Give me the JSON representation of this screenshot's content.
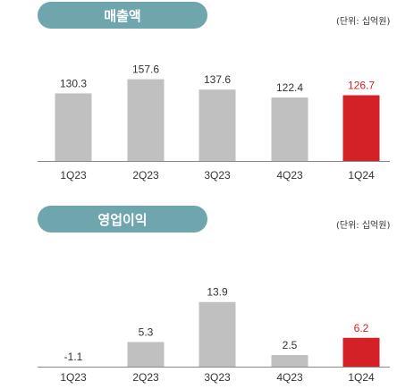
{
  "colors": {
    "pill": "#6FA6AE",
    "bar": "#C0C0C0",
    "highlight": "#D42027",
    "label": "#333333",
    "axis": "#888888"
  },
  "chart_data": [
    {
      "type": "bar",
      "title": "매출액",
      "unit": "(단위: 십억원)",
      "categories": [
        "1Q23",
        "2Q23",
        "3Q23",
        "4Q23",
        "1Q24"
      ],
      "values": [
        130.3,
        157.6,
        137.6,
        122.4,
        126.7
      ],
      "value_labels": [
        "130.3",
        "157.6",
        "137.6",
        "122.4",
        "126.7"
      ],
      "highlight_index": 4,
      "ylim": [
        0,
        180
      ],
      "grid": false
    },
    {
      "type": "bar",
      "title": "영업이익",
      "unit": "(단위: 십억원)",
      "categories": [
        "1Q23",
        "2Q23",
        "3Q23",
        "4Q23",
        "1Q24"
      ],
      "values": [
        -1.1,
        5.3,
        13.9,
        2.5,
        6.2
      ],
      "value_labels": [
        "-1.1",
        "5.3",
        "13.9",
        "2.5",
        "6.2"
      ],
      "highlight_index": 4,
      "ylim": [
        0,
        16
      ],
      "grid": false
    }
  ]
}
